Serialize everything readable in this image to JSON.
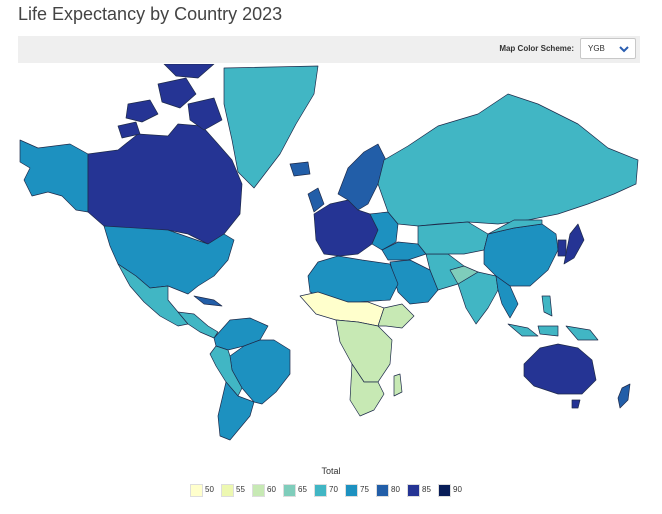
{
  "title": "Life Expectancy by Country 2023",
  "toolbar": {
    "scheme_label": "Map Color Scheme:",
    "scheme_value": "YGB"
  },
  "colors": {
    "ocean": "#ffffff",
    "border": "#1e2a4a",
    "scale": [
      "#ffffcc",
      "#edf8b1",
      "#c7e9b4",
      "#7fcdbb",
      "#41b6c4",
      "#1d91c0",
      "#225ea8",
      "#253494",
      "#081d58"
    ]
  },
  "legend": {
    "title": "Total",
    "labels": [
      "50",
      "55",
      "60",
      "65",
      "70",
      "75",
      "80",
      "85",
      "90"
    ]
  }
}
